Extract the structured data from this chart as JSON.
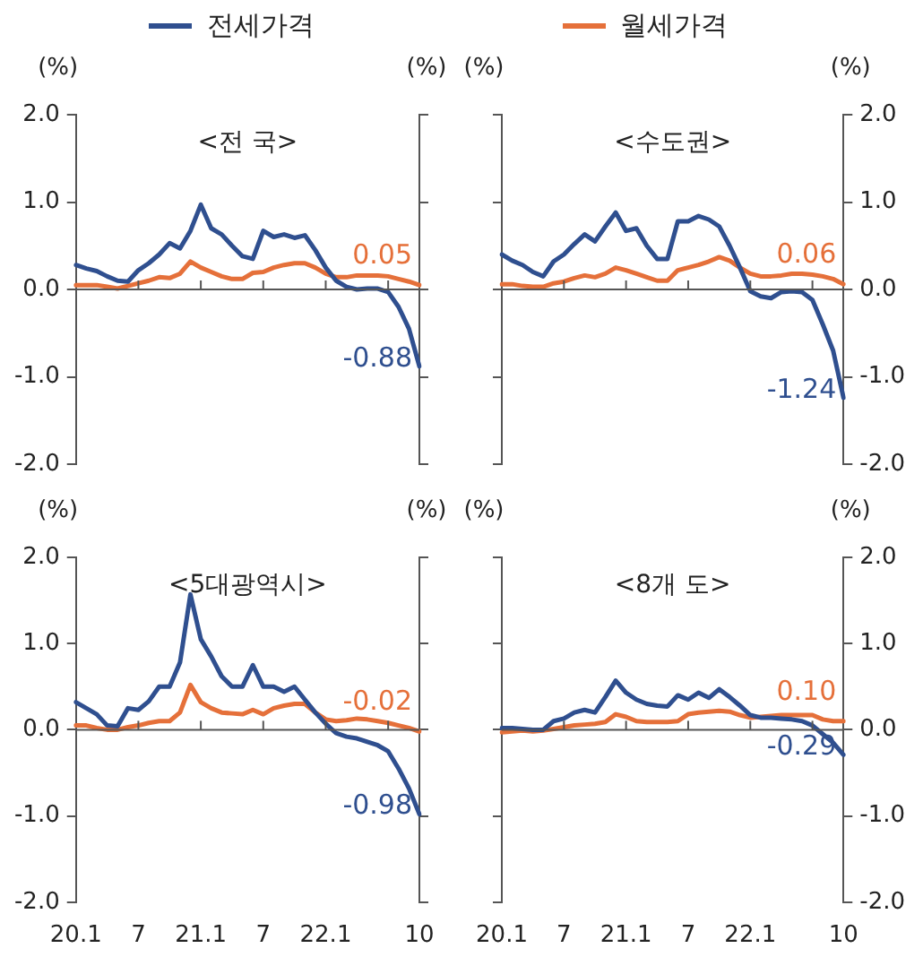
{
  "chart_data": [
    {
      "type": "line",
      "title": "<전 국>",
      "ylabel": "(%)",
      "y2label": "(%)",
      "legend": "top",
      "tick_labels": "y",
      "categories": [
        "20.1",
        null,
        null,
        null,
        null,
        null,
        "7",
        null,
        null,
        null,
        null,
        null,
        "21.1",
        null,
        null,
        null,
        null,
        null,
        "7",
        null,
        null,
        null,
        null,
        null,
        "22.1",
        null,
        null,
        null,
        null,
        null,
        null,
        null,
        null,
        "10"
      ],
      "ylim": [
        -2,
        2
      ],
      "yticks": [
        {
          "value": -2,
          "label": "-2.0"
        },
        {
          "value": -1,
          "label": "-1.0"
        },
        {
          "value": 0,
          "label": "0.0"
        },
        {
          "value": 1,
          "label": "1.0"
        },
        {
          "value": 2,
          "label": "2.0"
        }
      ],
      "series": [
        {
          "name": "전세가격",
          "color": "#2f4f8f",
          "values": [
            0.28,
            0.24,
            0.21,
            0.15,
            0.1,
            0.09,
            0.22,
            0.3,
            0.4,
            0.53,
            0.47,
            0.67,
            0.97,
            0.7,
            0.63,
            0.5,
            0.38,
            0.35,
            0.67,
            0.6,
            0.63,
            0.59,
            0.62,
            0.45,
            0.25,
            0.1,
            0.03,
            0.0,
            0.01,
            0.01,
            -0.03,
            -0.2,
            -0.45,
            -0.88
          ],
          "value_labels": [
            null,
            null,
            null,
            null,
            null,
            null,
            null,
            null,
            null,
            null,
            null,
            null,
            null,
            null,
            null,
            null,
            null,
            null,
            null,
            null,
            null,
            null,
            null,
            null,
            null,
            null,
            null,
            null,
            null,
            null,
            null,
            null,
            null,
            "-0.88"
          ]
        },
        {
          "name": "월세가격",
          "color": "#e5703a",
          "values": [
            0.05,
            0.05,
            0.05,
            0.03,
            0.01,
            0.04,
            0.07,
            0.1,
            0.14,
            0.13,
            0.18,
            0.32,
            0.25,
            0.2,
            0.15,
            0.12,
            0.12,
            0.19,
            0.2,
            0.25,
            0.28,
            0.3,
            0.3,
            0.25,
            0.18,
            0.14,
            0.14,
            0.16,
            0.16,
            0.16,
            0.15,
            0.12,
            0.09,
            0.05
          ],
          "value_labels": [
            null,
            null,
            null,
            null,
            null,
            null,
            null,
            null,
            null,
            null,
            null,
            null,
            null,
            null,
            null,
            null,
            null,
            null,
            null,
            null,
            null,
            null,
            null,
            null,
            null,
            null,
            null,
            null,
            null,
            null,
            null,
            null,
            null,
            "0.05"
          ]
        }
      ]
    },
    {
      "type": "line",
      "title": "<수도권>",
      "ylabel": "(%)",
      "y2label": "(%)",
      "tick_labels": "y",
      "categories": [
        "20.1",
        null,
        null,
        null,
        null,
        null,
        "7",
        null,
        null,
        null,
        null,
        null,
        "21.1",
        null,
        null,
        null,
        null,
        null,
        "7",
        null,
        null,
        null,
        null,
        null,
        "22.1",
        null,
        null,
        null,
        null,
        null,
        null,
        null,
        null,
        "10"
      ],
      "y2lim": [
        -2,
        2
      ],
      "y2ticks": [
        {
          "value": -2,
          "label": "-2.0"
        },
        {
          "value": -1,
          "label": "-1.0"
        },
        {
          "value": 0,
          "label": "0.0"
        },
        {
          "value": 1,
          "label": "1.0"
        },
        {
          "value": 2,
          "label": "2.0"
        }
      ],
      "series": [
        {
          "color": "#2f4f8f",
          "values": [
            0.4,
            0.33,
            0.28,
            0.2,
            0.15,
            0.32,
            0.4,
            0.52,
            0.63,
            0.55,
            0.72,
            0.88,
            0.67,
            0.7,
            0.5,
            0.35,
            0.35,
            0.78,
            0.78,
            0.84,
            0.8,
            0.72,
            0.5,
            0.25,
            -0.02,
            -0.08,
            -0.1,
            -0.03,
            -0.02,
            -0.03,
            -0.12,
            -0.4,
            -0.7,
            -1.24
          ],
          "value_labels": [
            null,
            null,
            null,
            null,
            null,
            null,
            null,
            null,
            null,
            null,
            null,
            null,
            null,
            null,
            null,
            null,
            null,
            null,
            null,
            null,
            null,
            null,
            null,
            null,
            null,
            null,
            null,
            null,
            null,
            null,
            null,
            null,
            null,
            "-1.24"
          ]
        },
        {
          "color": "#e5703a",
          "values": [
            0.06,
            0.06,
            0.04,
            0.03,
            0.03,
            0.07,
            0.09,
            0.13,
            0.16,
            0.14,
            0.18,
            0.25,
            0.22,
            0.18,
            0.14,
            0.1,
            0.1,
            0.22,
            0.25,
            0.28,
            0.32,
            0.37,
            0.33,
            0.25,
            0.18,
            0.15,
            0.15,
            0.16,
            0.18,
            0.18,
            0.17,
            0.15,
            0.12,
            0.06
          ],
          "value_labels": [
            null,
            null,
            null,
            null,
            null,
            null,
            null,
            null,
            null,
            null,
            null,
            null,
            null,
            null,
            null,
            null,
            null,
            null,
            null,
            null,
            null,
            null,
            null,
            null,
            null,
            null,
            null,
            null,
            null,
            null,
            null,
            null,
            null,
            "0.06"
          ]
        }
      ]
    },
    {
      "type": "line",
      "title": "<5대광역시>",
      "ylabel": "(%)",
      "y2label": "(%)",
      "categories": [
        "20.1",
        null,
        null,
        null,
        null,
        null,
        "7",
        null,
        null,
        null,
        null,
        null,
        "21.1",
        null,
        null,
        null,
        null,
        null,
        "7",
        null,
        null,
        null,
        null,
        null,
        "22.1",
        null,
        null,
        null,
        null,
        null,
        null,
        null,
        null,
        "10"
      ],
      "ylim": [
        -2,
        2
      ],
      "yticks": [
        {
          "value": -2,
          "label": "-2.0"
        },
        {
          "value": -1,
          "label": "-1.0"
        },
        {
          "value": 0,
          "label": "0.0"
        },
        {
          "value": 1,
          "label": "1.0"
        },
        {
          "value": 2,
          "label": "2.0"
        }
      ],
      "series": [
        {
          "color": "#2f4f8f",
          "values": [
            0.32,
            0.25,
            0.18,
            0.05,
            0.04,
            0.25,
            0.23,
            0.33,
            0.5,
            0.5,
            0.78,
            1.57,
            1.05,
            0.85,
            0.62,
            0.5,
            0.5,
            0.75,
            0.5,
            0.5,
            0.44,
            0.5,
            0.35,
            0.2,
            0.07,
            -0.04,
            -0.08,
            -0.1,
            -0.14,
            -0.18,
            -0.25,
            -0.45,
            -0.68,
            -0.98
          ],
          "value_labels": [
            null,
            null,
            null,
            null,
            null,
            null,
            null,
            null,
            null,
            null,
            null,
            null,
            null,
            null,
            null,
            null,
            null,
            null,
            null,
            null,
            null,
            null,
            null,
            null,
            null,
            null,
            null,
            null,
            null,
            null,
            null,
            null,
            null,
            "-0.98"
          ]
        },
        {
          "color": "#e5703a",
          "values": [
            0.05,
            0.05,
            0.02,
            0.0,
            0.0,
            0.03,
            0.05,
            0.08,
            0.1,
            0.1,
            0.2,
            0.52,
            0.32,
            0.25,
            0.2,
            0.19,
            0.18,
            0.23,
            0.18,
            0.25,
            0.28,
            0.3,
            0.3,
            0.2,
            0.12,
            0.1,
            0.11,
            0.13,
            0.12,
            0.1,
            0.08,
            0.05,
            0.02,
            -0.02
          ],
          "value_labels": [
            null,
            null,
            null,
            null,
            null,
            null,
            null,
            null,
            null,
            null,
            null,
            null,
            null,
            null,
            null,
            null,
            null,
            null,
            null,
            null,
            null,
            null,
            null,
            null,
            null,
            null,
            null,
            null,
            null,
            null,
            null,
            null,
            null,
            "-0.02"
          ]
        }
      ]
    },
    {
      "type": "line",
      "title": "<8개 도>",
      "ylabel": "(%)",
      "y2label": "(%)",
      "categories": [
        "20.1",
        null,
        null,
        null,
        null,
        null,
        "7",
        null,
        null,
        null,
        null,
        null,
        "21.1",
        null,
        null,
        null,
        null,
        null,
        "7",
        null,
        null,
        null,
        null,
        null,
        "22.1",
        null,
        null,
        null,
        null,
        null,
        null,
        null,
        null,
        "10"
      ],
      "y2lim": [
        -2,
        2
      ],
      "y2ticks": [
        {
          "value": -2,
          "label": "-2.0"
        },
        {
          "value": -1,
          "label": "-1.0"
        },
        {
          "value": 0,
          "label": "0.0"
        },
        {
          "value": 1,
          "label": "1.0"
        },
        {
          "value": 2,
          "label": "2.0"
        }
      ],
      "series": [
        {
          "color": "#2f4f8f",
          "values": [
            0.02,
            0.02,
            0.01,
            0.0,
            0.0,
            0.1,
            0.13,
            0.2,
            0.23,
            0.2,
            0.38,
            0.57,
            0.43,
            0.35,
            0.3,
            0.28,
            0.27,
            0.4,
            0.35,
            0.43,
            0.37,
            0.47,
            0.38,
            0.28,
            0.17,
            0.14,
            0.14,
            0.13,
            0.12,
            0.1,
            0.05,
            -0.05,
            -0.15,
            -0.29
          ],
          "value_labels": [
            null,
            null,
            null,
            null,
            null,
            null,
            null,
            null,
            null,
            null,
            null,
            null,
            null,
            null,
            null,
            null,
            null,
            null,
            null,
            null,
            null,
            null,
            null,
            null,
            null,
            null,
            null,
            null,
            null,
            null,
            null,
            null,
            null,
            "-0.29"
          ]
        },
        {
          "color": "#e5703a",
          "values": [
            -0.03,
            -0.02,
            -0.01,
            -0.02,
            -0.01,
            0.01,
            0.03,
            0.05,
            0.06,
            0.07,
            0.09,
            0.18,
            0.15,
            0.1,
            0.09,
            0.09,
            0.09,
            0.1,
            0.18,
            0.2,
            0.21,
            0.22,
            0.21,
            0.17,
            0.14,
            0.15,
            0.16,
            0.17,
            0.17,
            0.17,
            0.17,
            0.12,
            0.1,
            0.1
          ],
          "value_labels": [
            null,
            null,
            null,
            null,
            null,
            null,
            null,
            null,
            null,
            null,
            null,
            null,
            null,
            null,
            null,
            null,
            null,
            null,
            null,
            null,
            null,
            null,
            null,
            null,
            null,
            null,
            null,
            null,
            null,
            null,
            null,
            null,
            null,
            "0.10"
          ]
        }
      ]
    }
  ]
}
